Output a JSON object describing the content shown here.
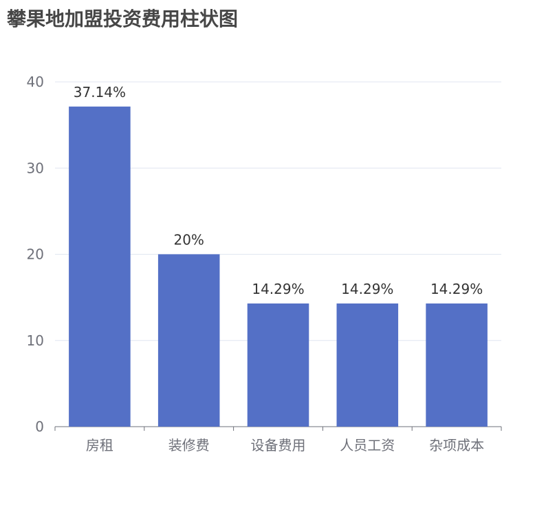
{
  "chart_data": {
    "type": "bar",
    "title": "攀果地加盟投资费用柱状图",
    "categories": [
      "房租",
      "装修费",
      "设备费用",
      "人员工资",
      "杂项成本"
    ],
    "values": [
      37.14,
      20,
      14.29,
      14.29,
      14.29
    ],
    "data_labels": [
      "37.14%",
      "20%",
      "14.29%",
      "14.29%",
      "14.29%"
    ],
    "xlabel": "",
    "ylabel": "",
    "ylim": [
      0,
      40
    ],
    "yticks": [
      0,
      10,
      20,
      30,
      40
    ],
    "grid": true,
    "colors": {
      "bar": "#5470c6",
      "grid": "#e0e6f1",
      "axis": "#6e7079"
    }
  }
}
